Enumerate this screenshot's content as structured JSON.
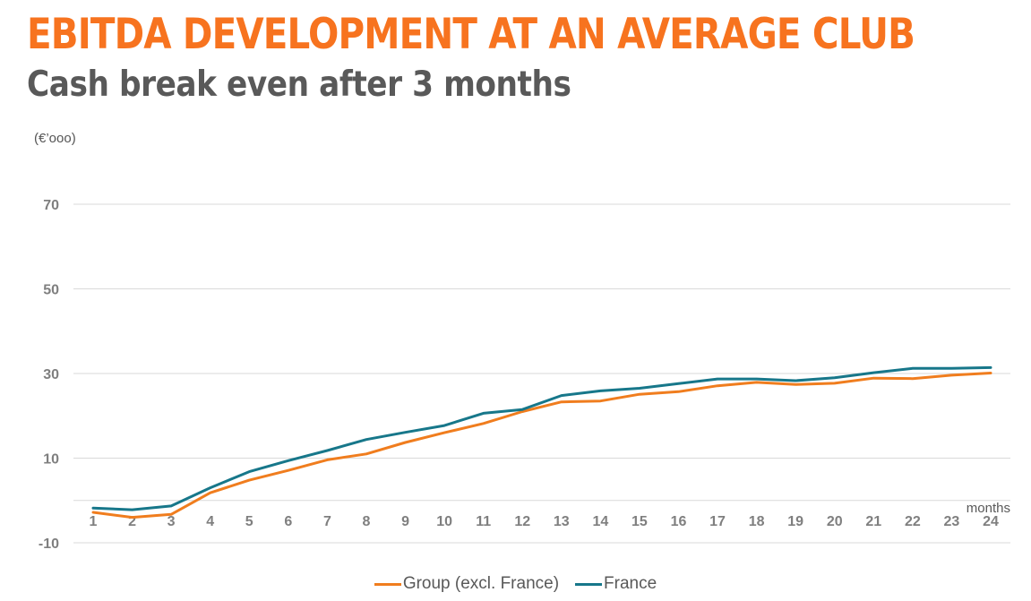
{
  "header": {
    "title": "EBITDA DEVELOPMENT AT AN AVERAGE CLUB",
    "subtitle": "Cash break even after 3 months"
  },
  "colors": {
    "title": "#F7731F",
    "subtitle": "#595959",
    "gridline": "#D9D9D9",
    "tick_label": "#7F7F7F"
  },
  "chart_data": {
    "type": "line",
    "unit_label": "(€’ooo)",
    "xlabel": "months",
    "ylabel": "",
    "ylim": [
      -10,
      70
    ],
    "yticks": [
      -10,
      10,
      30,
      50,
      70
    ],
    "grid": true,
    "legend_position": "bottom",
    "x": [
      1,
      2,
      3,
      4,
      5,
      6,
      7,
      8,
      9,
      10,
      11,
      12,
      13,
      14,
      15,
      16,
      17,
      18,
      19,
      20,
      21,
      22,
      23,
      24
    ],
    "series": [
      {
        "name": "Group (excl. France)",
        "color": "#F07D1E",
        "values": [
          -2.8,
          -4.0,
          -3.3,
          1.8,
          4.8,
          7.1,
          9.6,
          11.0,
          13.7,
          16.0,
          18.2,
          21.0,
          23.3,
          23.5,
          25.1,
          25.7,
          27.1,
          27.9,
          27.4,
          27.7,
          28.9,
          28.8,
          29.6,
          30.1
        ]
      },
      {
        "name": "France",
        "color": "#17778A",
        "values": [
          -1.8,
          -2.2,
          -1.3,
          3.0,
          6.8,
          9.4,
          11.8,
          14.4,
          16.1,
          17.7,
          20.6,
          21.5,
          24.8,
          25.9,
          26.5,
          27.6,
          28.7,
          28.7,
          28.3,
          29.0,
          30.2,
          31.2,
          31.2,
          31.4
        ]
      }
    ]
  }
}
